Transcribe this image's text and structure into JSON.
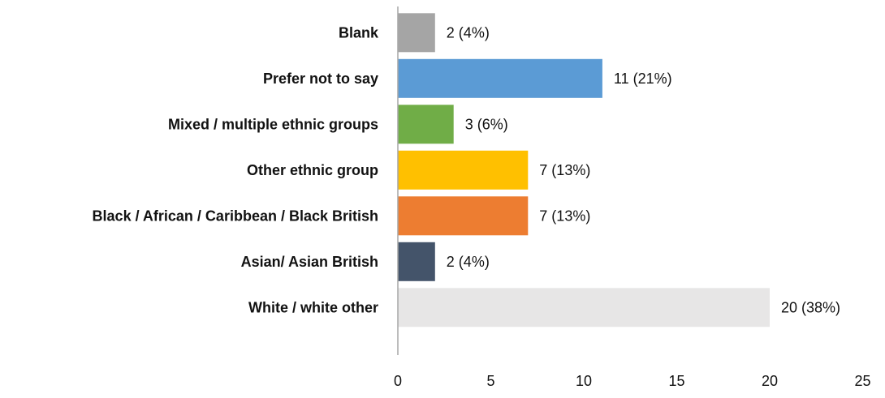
{
  "chart_data": {
    "type": "bar",
    "orientation": "horizontal",
    "categories": [
      "Blank",
      "Prefer not to say",
      "Mixed / multiple ethnic groups",
      "Other ethnic group",
      "Black / African / Caribbean / Black British",
      "Asian/ Asian British",
      "White / white other"
    ],
    "values": [
      2,
      11,
      3,
      7,
      7,
      2,
      20
    ],
    "data_labels": [
      "2 (4%)",
      "11 (21%)",
      "3 (6%)",
      "7 (13%)",
      "7 (13%)",
      "2 (4%)",
      "20 (38%)"
    ],
    "colors": [
      "#A5A5A5",
      "#5B9BD5",
      "#70AD47",
      "#FFC000",
      "#ED7D31",
      "#44546A",
      "#E7E6E6"
    ],
    "xlim": [
      0,
      25
    ],
    "xticks": [
      "0",
      "5",
      "10",
      "15",
      "20",
      "25"
    ],
    "grid": false,
    "legend": "none"
  }
}
